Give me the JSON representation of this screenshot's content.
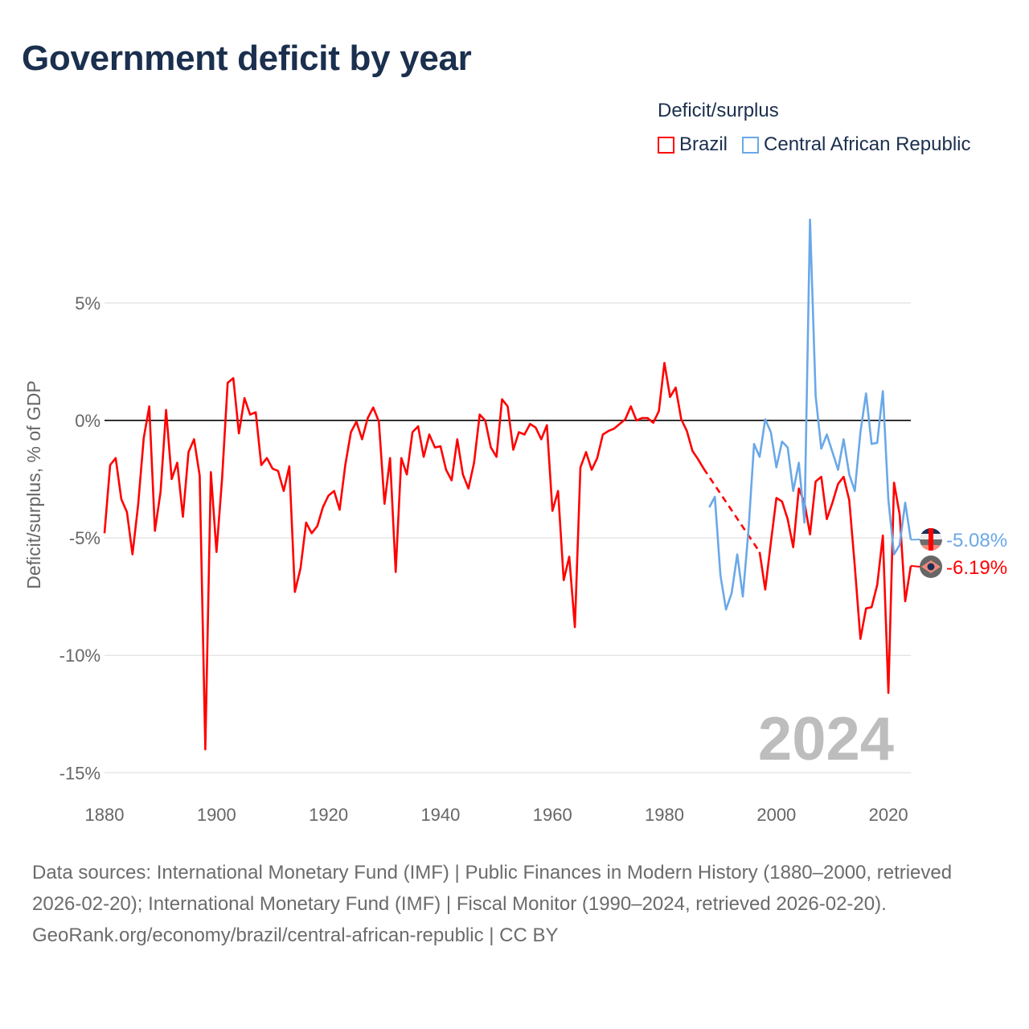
{
  "title": "Government deficit by year",
  "legend": {
    "title": "Deficit/surplus",
    "items": [
      {
        "label": "Brazil",
        "color": "#ff0000"
      },
      {
        "label": "Central African Republic",
        "color": "#6aa8e8"
      }
    ]
  },
  "footer": {
    "sources": "Data sources: International Monetary Fund (IMF) | Public Finances in Modern History (1880–2000, retrieved 2026-02-20); International Monetary Fund (IMF) | Fiscal Monitor (1990–2024, retrieved 2026-02-20).",
    "link": "GeoRank.org/economy/brazil/central-african-republic | CC BY"
  },
  "chart_data": {
    "type": "line",
    "title": "Government deficit by year",
    "xlabel": "",
    "ylabel": "Deficit/surplus, % of GDP",
    "xlim": [
      1880,
      2024
    ],
    "ylim": [
      -15,
      9
    ],
    "x_ticks": [
      {
        "value": 1880,
        "label": "1880"
      },
      {
        "value": 1900,
        "label": "1900"
      },
      {
        "value": 1920,
        "label": "1920"
      },
      {
        "value": 1940,
        "label": "1940"
      },
      {
        "value": 1960,
        "label": "1960"
      },
      {
        "value": 1980,
        "label": "1980"
      },
      {
        "value": 2000,
        "label": "2000"
      },
      {
        "value": 2020,
        "label": "2020"
      }
    ],
    "y_ticks": [
      {
        "value": 5,
        "label": "5%"
      },
      {
        "value": 0,
        "label": "0%"
      },
      {
        "value": -5,
        "label": "-5%"
      },
      {
        "value": -10,
        "label": "-10%"
      },
      {
        "value": -15,
        "label": "-15%"
      }
    ],
    "year_watermark": "2024",
    "grid": true,
    "legend_position": "top-right",
    "series": [
      {
        "name": "Brazil",
        "color": "#ff0000",
        "start_year": 1880,
        "end_label": "-6.19%",
        "values": [
          -4.8,
          -1.9,
          -1.6,
          -3.35,
          -3.9,
          -5.7,
          -3.6,
          -0.75,
          0.6,
          -4.7,
          -3.05,
          0.45,
          -2.5,
          -1.8,
          -4.1,
          -1.35,
          -0.8,
          -2.35,
          -14.0,
          -2.2,
          -5.6,
          -2.45,
          1.6,
          1.8,
          -0.55,
          0.95,
          0.25,
          0.35,
          -1.9,
          -1.6,
          -2.05,
          -2.15,
          -3.0,
          -1.95,
          -7.3,
          -6.3,
          -4.35,
          -4.8,
          -4.5,
          -3.7,
          -3.2,
          -3.0,
          -3.8,
          -1.9,
          -0.5,
          -0.05,
          -0.8,
          0.1,
          0.55,
          -0.05,
          -3.55,
          -1.6,
          -6.45,
          -1.6,
          -2.3,
          -0.5,
          -0.25,
          -1.55,
          -0.6,
          -1.15,
          -1.1,
          -2.1,
          -2.55,
          -0.8,
          -2.3,
          -2.9,
          -1.8,
          0.25,
          0.0,
          -1.15,
          -1.55,
          0.9,
          0.6,
          -1.25,
          -0.5,
          -0.6,
          -0.15,
          -0.3,
          -0.8,
          -0.2,
          -3.85,
          -3.0,
          -6.8,
          -5.8,
          -8.8,
          -2.0,
          -1.35,
          -2.1,
          -1.6,
          -0.6,
          -0.45,
          -0.35,
          -0.15,
          0.05,
          0.6,
          0.0,
          0.1,
          0.1,
          -0.1,
          0.4,
          2.45,
          1.0,
          1.4,
          0.05,
          -0.45,
          -1.3,
          -1.65,
          -2.05,
          null,
          null,
          null,
          null,
          null,
          null,
          null,
          null,
          null,
          -5.6,
          -7.2,
          -5.2,
          -3.3,
          -3.45,
          -4.2,
          -5.4,
          -2.9,
          -3.5,
          -4.85,
          -2.6,
          -2.4,
          -4.2,
          -3.5,
          -2.7,
          -2.4,
          -3.4,
          -6.2,
          -9.3,
          -8.0,
          -7.95,
          -7.0,
          -4.9,
          -11.6,
          -2.65,
          -4.0,
          -7.7,
          -6.19
        ]
      },
      {
        "name": "Central African Republic",
        "color": "#6aa8e8",
        "start_year": 1988,
        "end_label": "-5.08%",
        "values": [
          -3.7,
          -3.25,
          -6.6,
          -8.05,
          -7.35,
          -5.7,
          -7.5,
          -4.7,
          -1.0,
          -1.55,
          0.05,
          -0.5,
          -2.0,
          -0.9,
          -1.15,
          -3.0,
          -1.8,
          -4.35,
          8.55,
          1.05,
          -1.2,
          -0.6,
          -1.35,
          -2.1,
          -0.8,
          -2.3,
          -3.0,
          -0.5,
          1.15,
          -1.0,
          -0.95,
          1.25,
          -3.4,
          -5.7,
          -5.3,
          -3.5,
          -5.08
        ]
      }
    ]
  }
}
